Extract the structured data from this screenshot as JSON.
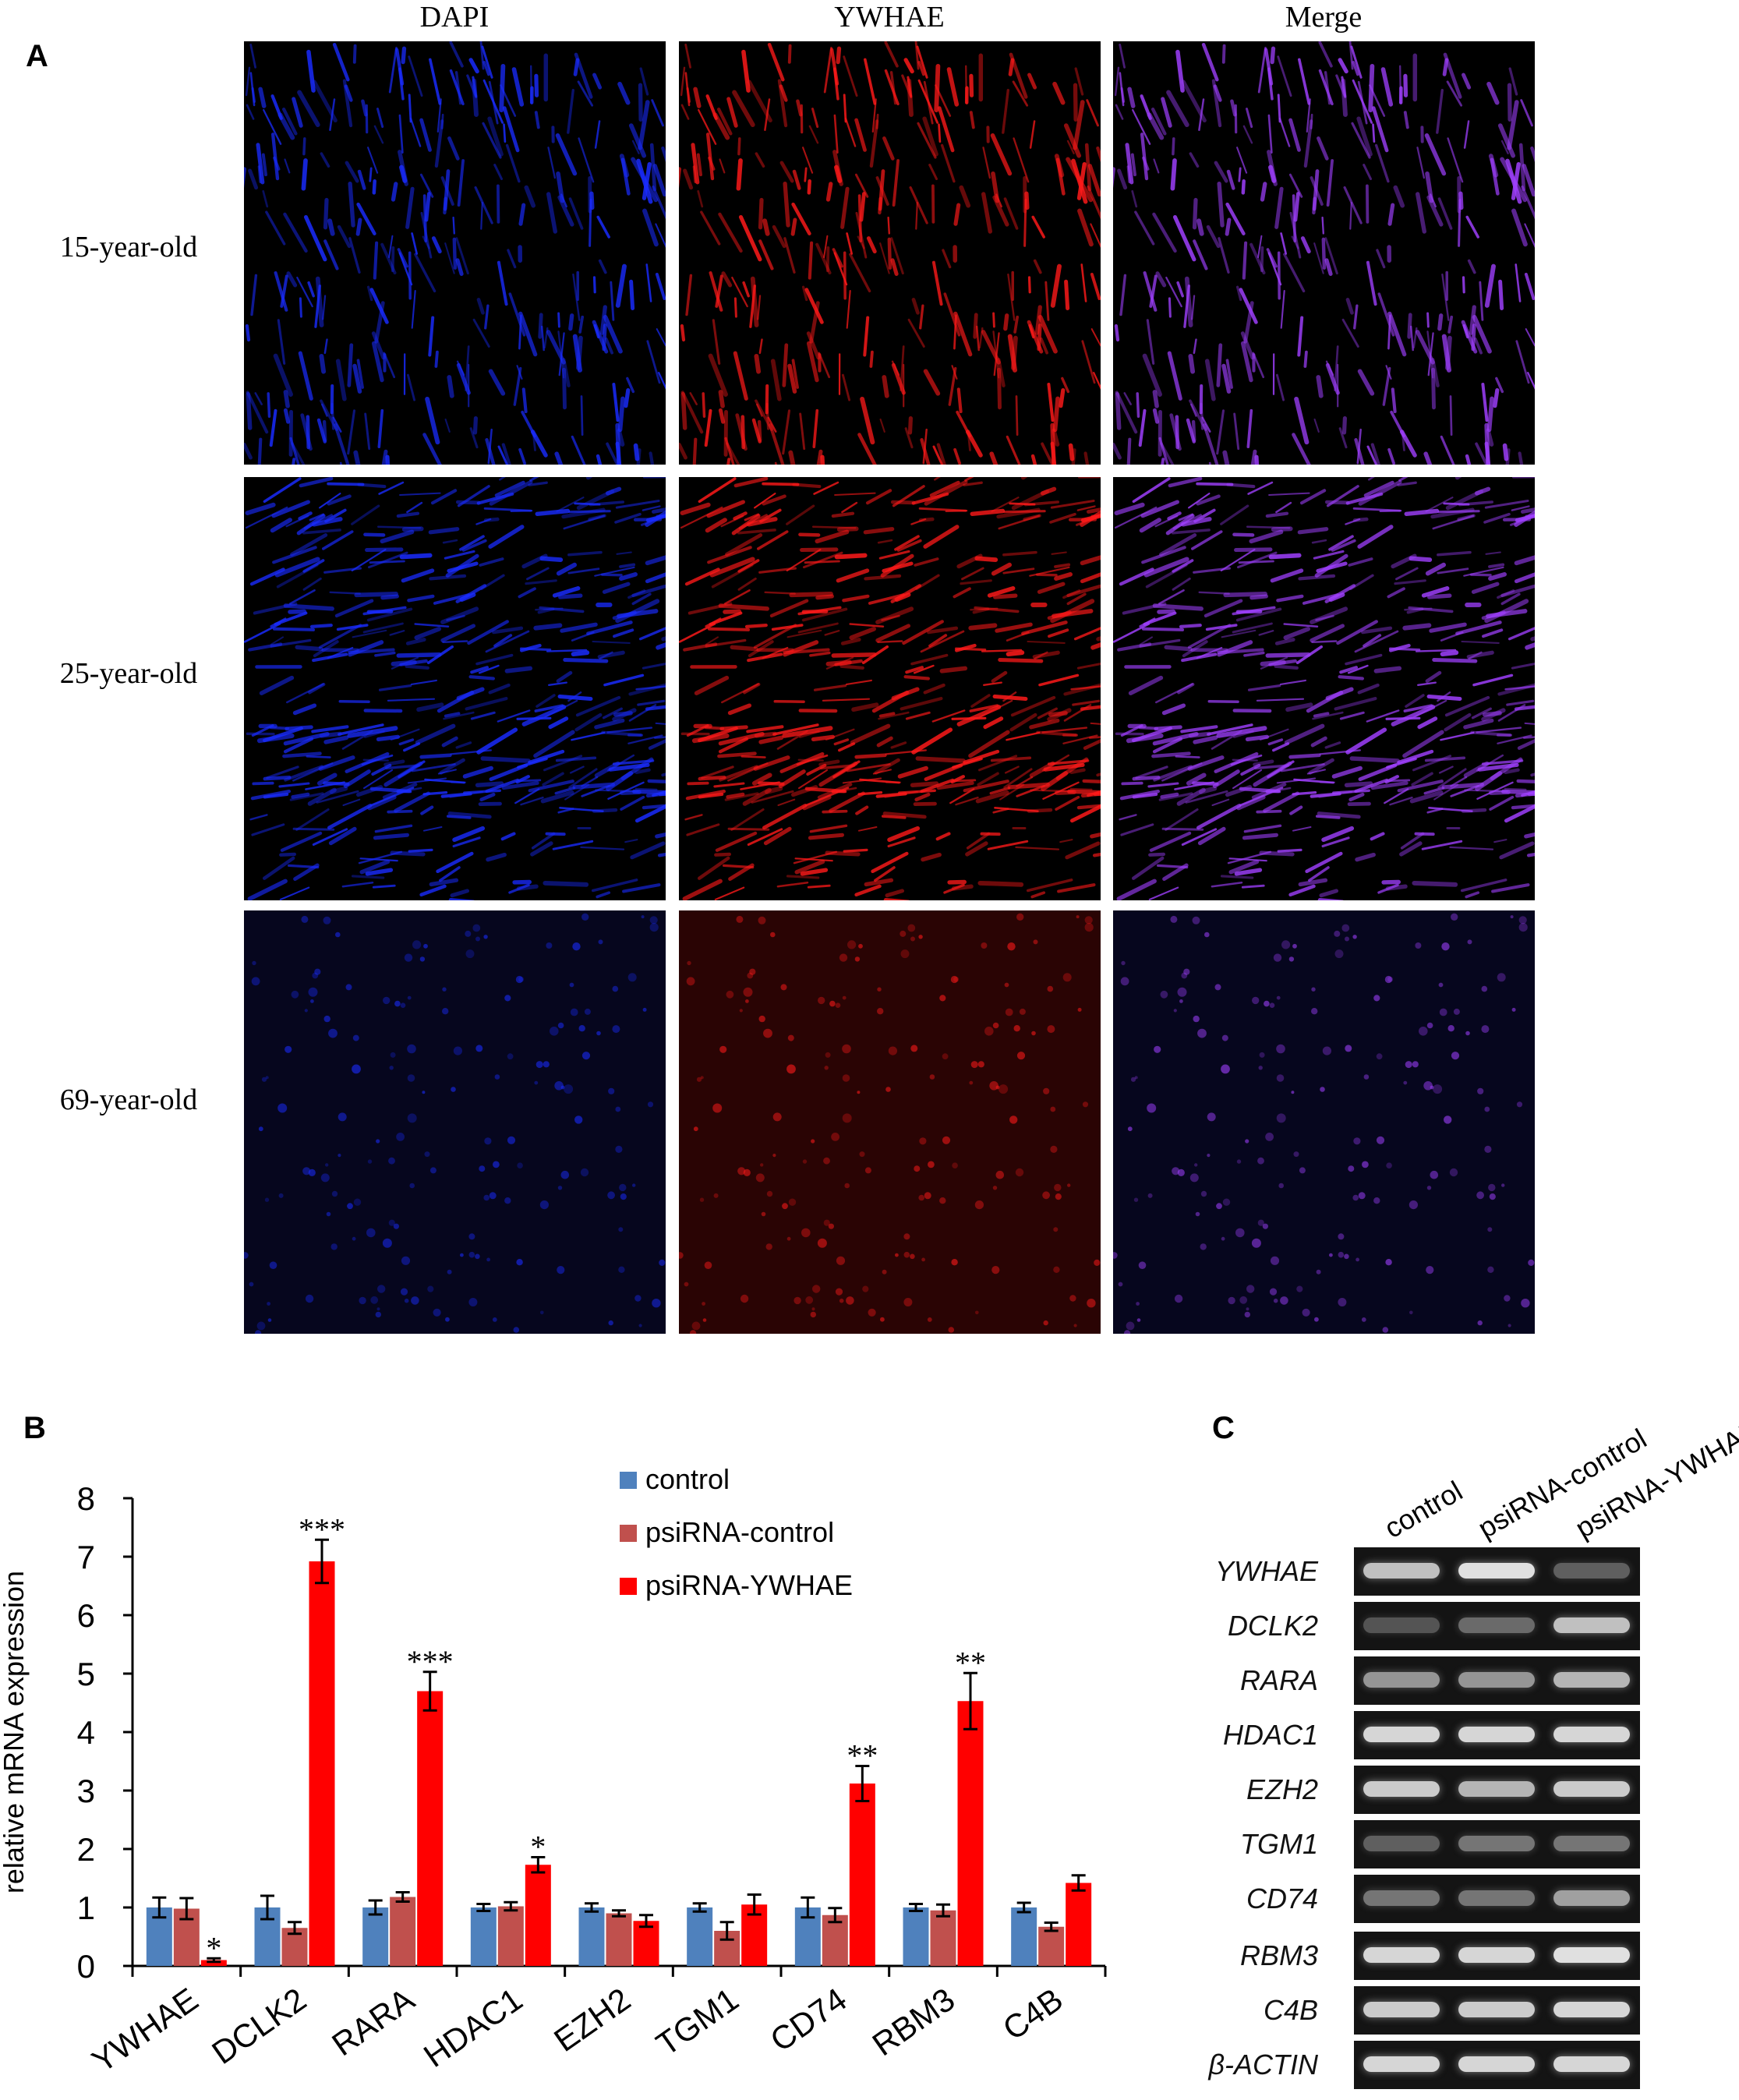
{
  "panel_a": {
    "letter": "A",
    "columns": [
      "DAPI",
      "YWHAE",
      "Merge"
    ],
    "rows": [
      "15-year-old",
      "25-year-old",
      "69-year-old"
    ],
    "channel_colors": {
      "dapi": "#1a2cff",
      "ywhae": "#ff1a1a",
      "merge": "#a040ff"
    }
  },
  "panel_b": {
    "letter": "B"
  },
  "panel_c": {
    "letter": "C",
    "lanes": [
      "control",
      "psiRNA-control",
      "psiRNA-YWHAE"
    ],
    "genes": [
      "YWHAE",
      "DCLK2",
      "RARA",
      "HDAC1",
      "EZH2",
      "TGM1",
      "CD74",
      "RBM3",
      "C4B",
      "β-ACTIN"
    ]
  },
  "chart_data": {
    "type": "bar",
    "title": "",
    "xlabel": "",
    "ylabel": "relative mRNA expression",
    "ylim": [
      0,
      8
    ],
    "yticks": [
      "0",
      "1",
      "2",
      "3",
      "4",
      "5",
      "6",
      "7",
      "8"
    ],
    "categories": [
      "YWHAE",
      "DCLK2",
      "RARA",
      "HDAC1",
      "EZH2",
      "TGM1",
      "CD74",
      "RBM3",
      "C4B"
    ],
    "legend_position": "top-right",
    "series": [
      {
        "name": "control",
        "color": "#4f81bd",
        "values": [
          1.0,
          1.0,
          1.0,
          1.0,
          1.0,
          1.0,
          1.0,
          1.0,
          1.0
        ],
        "errors": [
          0.17,
          0.2,
          0.12,
          0.06,
          0.07,
          0.07,
          0.17,
          0.06,
          0.08
        ]
      },
      {
        "name": "psiRNA-control",
        "color": "#c0504d",
        "values": [
          0.98,
          0.65,
          1.18,
          1.02,
          0.9,
          0.6,
          0.87,
          0.95,
          0.67
        ],
        "errors": [
          0.18,
          0.1,
          0.08,
          0.07,
          0.05,
          0.15,
          0.12,
          0.1,
          0.07
        ]
      },
      {
        "name": "psiRNA-YWHAE",
        "color": "#ff0000",
        "values": [
          0.1,
          6.92,
          4.7,
          1.73,
          0.77,
          1.05,
          3.12,
          4.53,
          1.42
        ],
        "errors": [
          0.03,
          0.37,
          0.33,
          0.13,
          0.1,
          0.17,
          0.3,
          0.48,
          0.13
        ]
      }
    ],
    "significance": [
      "*",
      "***",
      "***",
      "*",
      "",
      "",
      "**",
      "**",
      ""
    ]
  }
}
